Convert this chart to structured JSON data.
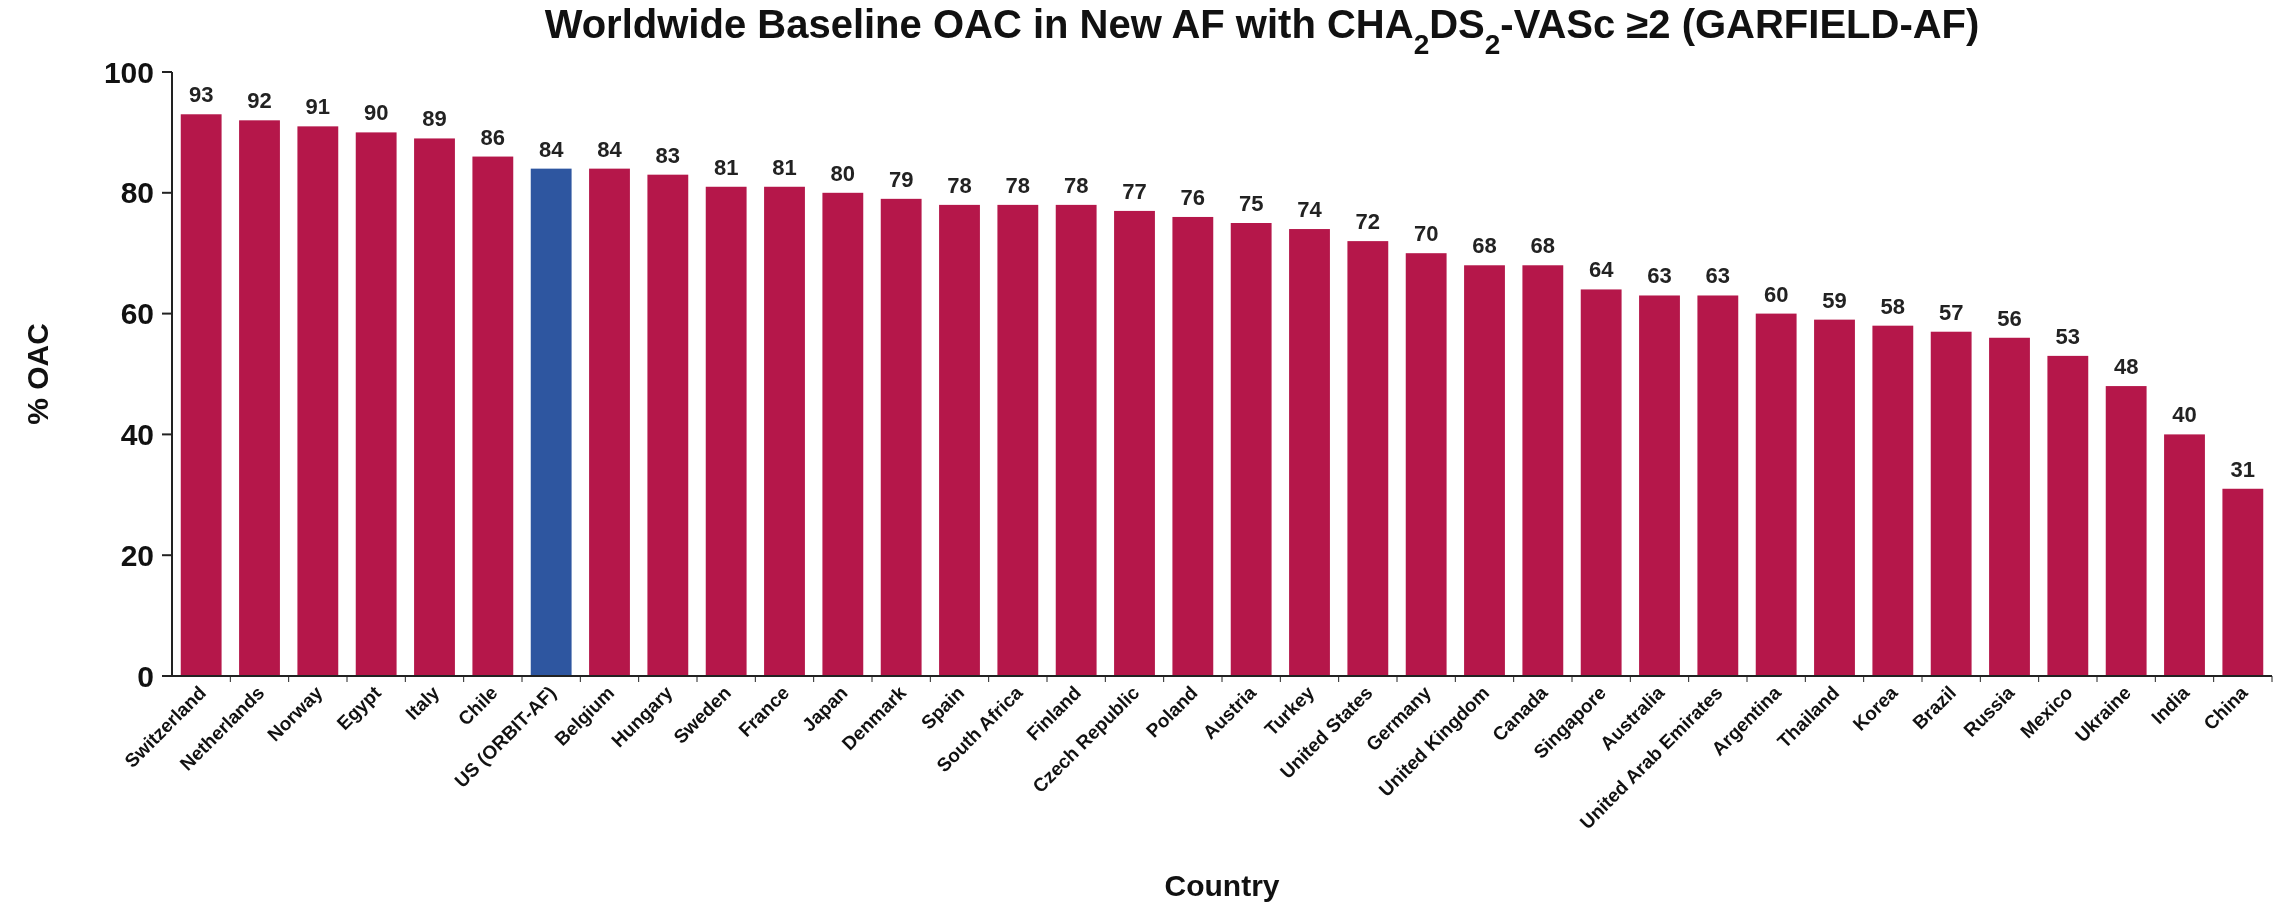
{
  "chart_data": {
    "type": "bar",
    "title": "Worldwide Baseline OAC in New AF with CHA$_{2}$DS$_{2}$-VASc ≥2 (GARFIELD-AF)",
    "xlabel": "Country",
    "ylabel": "% OAC",
    "categories": [
      "Switzerland",
      "Netherlands",
      "Norway",
      "Egypt",
      "Italy",
      "Chile",
      "US (ORBIT-AF)",
      "Belgium",
      "Hungary",
      "Sweden",
      "France",
      "Japan",
      "Denmark",
      "Spain",
      "South Africa",
      "Finland",
      "Czech Republic",
      "Poland",
      "Austria",
      "Turkey",
      "United States",
      "Germany",
      "United Kingdom",
      "Canada",
      "Singapore",
      "Australia",
      "United Arab Emirates",
      "Argentina",
      "Thailand",
      "Korea",
      "Brazil",
      "Russia",
      "Mexico",
      "Ukraine",
      "India",
      "China"
    ],
    "values": [
      93,
      92,
      91,
      90,
      89,
      86,
      84,
      84,
      83,
      81,
      81,
      80,
      79,
      78,
      78,
      78,
      77,
      76,
      75,
      74,
      72,
      70,
      68,
      68,
      64,
      63,
      63,
      60,
      59,
      58,
      57,
      56,
      53,
      48,
      40,
      31
    ],
    "colors": [
      "#b5174a",
      "#b5174a",
      "#b5174a",
      "#b5174a",
      "#b5174a",
      "#b5174a",
      "#2e56a0",
      "#b5174a",
      "#b5174a",
      "#b5174a",
      "#b5174a",
      "#b5174a",
      "#b5174a",
      "#b5174a",
      "#b5174a",
      "#b5174a",
      "#b5174a",
      "#b5174a",
      "#b5174a",
      "#b5174a",
      "#b5174a",
      "#b5174a",
      "#b5174a",
      "#b5174a",
      "#b5174a",
      "#b5174a",
      "#b5174a",
      "#b5174a",
      "#b5174a",
      "#b5174a",
      "#b5174a",
      "#b5174a",
      "#b5174a",
      "#b5174a",
      "#b5174a",
      "#b5174a"
    ],
    "ylim": [
      0,
      100
    ],
    "yticks": [
      0,
      20,
      40,
      60,
      80,
      100
    ],
    "data_labels": true,
    "grid": false
  }
}
